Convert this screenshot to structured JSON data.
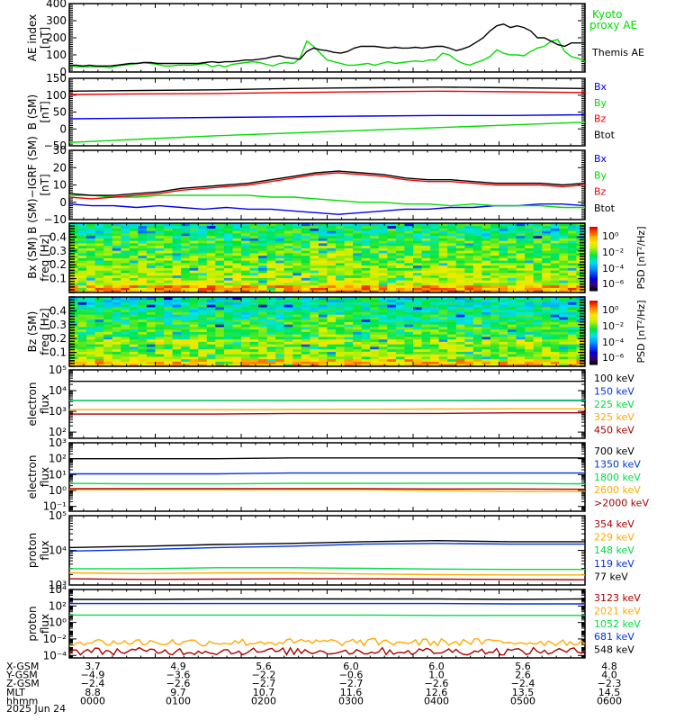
{
  "chart_data": [
    {
      "type": "line",
      "id": "ae",
      "ylabel": [
        "AE index",
        "[nT]"
      ],
      "ylim": [
        0,
        400
      ],
      "yticks": [
        "0",
        "100",
        "200",
        "300",
        "400"
      ],
      "yticks_values": [
        0,
        100,
        200,
        300,
        400
      ],
      "scale": "linear",
      "series": [
        {
          "name": "Kyoto proxy AE",
          "legend": [
            "Kyoto",
            "proxy AE"
          ],
          "color": "#00dd00",
          "values": [
            40,
            30,
            30,
            30,
            30,
            30,
            25,
            35,
            40,
            45,
            50,
            55,
            50,
            45,
            35,
            35,
            40,
            40,
            40,
            45,
            50,
            30,
            40,
            30,
            45,
            50,
            55,
            60,
            55,
            45,
            35,
            50,
            55,
            50,
            80,
            180,
            150,
            110,
            70,
            60,
            50,
            40,
            40,
            45,
            50,
            40,
            50,
            60,
            50,
            55,
            60,
            65,
            60,
            70,
            70,
            110,
            100,
            70,
            50,
            40,
            55,
            70,
            90,
            130,
            110,
            100,
            100,
            95,
            120,
            140,
            150,
            180,
            190,
            120,
            90,
            80,
            60
          ]
        },
        {
          "name": "Themis AE",
          "legend": [
            "Themis AE"
          ],
          "color": "#000000",
          "values": [
            40,
            40,
            35,
            40,
            35,
            35,
            35,
            40,
            45,
            50,
            50,
            55,
            55,
            50,
            50,
            50,
            50,
            50,
            50,
            50,
            55,
            60,
            55,
            60,
            60,
            65,
            70,
            70,
            75,
            80,
            90,
            95,
            85,
            80,
            75,
            120,
            140,
            130,
            125,
            115,
            110,
            120,
            140,
            150,
            150,
            150,
            145,
            140,
            145,
            140,
            140,
            145,
            140,
            145,
            150,
            150,
            140,
            125,
            135,
            150,
            175,
            200,
            240,
            270,
            280,
            260,
            270,
            260,
            240,
            200,
            200,
            180,
            160,
            150,
            170,
            170,
            170
          ]
        }
      ]
    },
    {
      "type": "line",
      "id": "bsm",
      "ylabel": [
        "B (SM)",
        "[nT]"
      ],
      "ylim": [
        -50,
        150
      ],
      "yticks": [
        "−50",
        "0",
        "50",
        "100",
        "150"
      ],
      "yticks_values": [
        -50,
        0,
        50,
        100,
        150
      ],
      "scale": "linear",
      "series": [
        {
          "name": "Bx",
          "color": "#0000ee",
          "values": [
            30,
            32,
            34,
            36,
            38,
            40,
            40,
            42
          ]
        },
        {
          "name": "By",
          "color": "#00dd00",
          "values": [
            -40,
            -30,
            -20,
            -12,
            -4,
            4,
            12,
            20
          ]
        },
        {
          "name": "Bz",
          "color": "#ee0000",
          "values": [
            102,
            104,
            105,
            108,
            110,
            112,
            110,
            108
          ]
        },
        {
          "name": "Btot",
          "color": "#000000",
          "values": [
            112,
            114,
            116,
            120,
            122,
            124,
            122,
            120
          ]
        }
      ]
    },
    {
      "type": "line",
      "id": "bigrf",
      "ylabel": [
        "B (SM)−IGRF (SM)",
        "[nT]"
      ],
      "ylim": [
        -10,
        30
      ],
      "yticks": [
        "−10",
        "0",
        "10",
        "20",
        "30"
      ],
      "yticks_values": [
        -10,
        0,
        10,
        20,
        30
      ],
      "scale": "linear",
      "series": [
        {
          "name": "Bx",
          "color": "#0000ee",
          "values": [
            -1,
            -2,
            -2,
            -3,
            -2,
            -3,
            -4,
            -3,
            -4,
            -4,
            -5,
            -6,
            -7,
            -6,
            -5,
            -4,
            -4,
            -3,
            -3,
            -2,
            -2,
            -1,
            -1,
            -2
          ]
        },
        {
          "name": "By",
          "color": "#00dd00",
          "values": [
            4,
            4,
            3,
            3,
            4,
            4,
            4,
            4,
            4,
            3,
            3,
            2,
            1,
            0,
            0,
            -1,
            -1,
            -2,
            -1,
            -2,
            -2,
            -2,
            -3,
            -3
          ]
        },
        {
          "name": "Bz",
          "color": "#ee0000",
          "values": [
            3,
            2,
            3,
            4,
            5,
            7,
            8,
            9,
            10,
            12,
            14,
            16,
            17,
            16,
            15,
            13,
            12,
            12,
            11,
            10,
            10,
            10,
            9,
            10
          ]
        },
        {
          "name": "Btot",
          "color": "#000000",
          "values": [
            5,
            4,
            4,
            5,
            6,
            8,
            9,
            10,
            11,
            13,
            15,
            17,
            18,
            17,
            16,
            14,
            13,
            13,
            12,
            11,
            11,
            11,
            10,
            11
          ]
        }
      ]
    },
    {
      "type": "heatmap",
      "id": "bx-spec",
      "ylabel": [
        "Bx (SM)",
        "freq [Hz]"
      ],
      "ylim": [
        0,
        0.5
      ],
      "yticks": [
        "0.1",
        "0.2",
        "0.3",
        "0.4"
      ],
      "yticks_values": [
        0.1,
        0.2,
        0.3,
        0.4
      ],
      "colorbar": {
        "label": "PSD [nT²/Hz]",
        "ticks": [
          "10⁰",
          "10⁻²",
          "10⁻⁴",
          "10⁻⁶"
        ],
        "log_range": [
          -7,
          1
        ]
      }
    },
    {
      "type": "heatmap",
      "id": "bz-spec",
      "ylabel": [
        "Bz (SM)",
        "freq [Hz]"
      ],
      "ylim": [
        0,
        0.5
      ],
      "yticks": [
        "0.1",
        "0.2",
        "0.3",
        "0.4"
      ],
      "yticks_values": [
        0.1,
        0.2,
        0.3,
        0.4
      ],
      "colorbar": {
        "label": "PSD [nT²/Hz]",
        "ticks": [
          "10⁰",
          "10⁻²",
          "10⁻⁴",
          "10⁻⁶"
        ],
        "log_range": [
          -7,
          1
        ]
      }
    },
    {
      "type": "line",
      "id": "eflux-low",
      "ylabel": [
        "electron",
        "flux"
      ],
      "scale": "log",
      "ylim_exp": [
        1.7,
        5
      ],
      "yticks": [
        "10²",
        "10³",
        "10⁴",
        "10⁵"
      ],
      "yticks_values": [
        2,
        3,
        4,
        5
      ],
      "series": [
        {
          "name": "100 keV",
          "color": "#000000",
          "values": [
            4.45,
            4.45,
            4.45,
            4.45,
            4.45,
            4.45,
            4.45,
            4.45
          ]
        },
        {
          "name": "150 keV",
          "color": "#0033dd",
          "values": [
            3.52,
            3.52,
            3.52,
            3.52,
            3.52,
            3.52,
            3.52,
            3.52
          ]
        },
        {
          "name": "225 keV",
          "color": "#00dd44",
          "values": [
            3.52,
            3.52,
            3.52,
            3.52,
            3.53,
            3.53,
            3.54,
            3.54
          ]
        },
        {
          "name": "325 keV",
          "color": "#ffaa00",
          "values": [
            3.08,
            3.08,
            3.08,
            3.09,
            3.1,
            3.11,
            3.12,
            3.12
          ]
        },
        {
          "name": "450 keV",
          "color": "#aa0000",
          "values": [
            2.87,
            2.87,
            2.87,
            2.9,
            2.9,
            2.9,
            2.93,
            2.93
          ]
        }
      ]
    },
    {
      "type": "line",
      "id": "eflux-high",
      "ylabel": [
        "electron",
        "flux"
      ],
      "scale": "log",
      "ylim_exp": [
        -1.3,
        3
      ],
      "yticks": [
        "10⁻¹",
        "10⁰",
        "10¹",
        "10²",
        "10³"
      ],
      "yticks_values": [
        -1,
        0,
        1,
        2,
        3
      ],
      "series": [
        {
          "name": "700 keV",
          "color": "#000000",
          "values": [
            2.0,
            2.0,
            2.0,
            2.05,
            2.05,
            2.05,
            2.05,
            2.05
          ]
        },
        {
          "name": "1350 keV",
          "color": "#0033dd",
          "values": [
            1.05,
            1.05,
            1.05,
            1.1,
            1.1,
            1.1,
            1.1,
            1.1
          ]
        },
        {
          "name": "1800 keV",
          "color": "#00dd44",
          "values": [
            0.45,
            0.42,
            0.42,
            0.45,
            0.45,
            0.45,
            0.45,
            0.42
          ]
        },
        {
          "name": "2600 keV",
          "color": "#ffaa00",
          "values": [
            0.05,
            0.05,
            0.05,
            0.05,
            0.05,
            0.0,
            -0.05,
            -0.05
          ]
        },
        {
          "name": ">2000 keV",
          "color": "#aa0000",
          "values": [
            0.12,
            0.12,
            0.12,
            0.12,
            0.12,
            0.1,
            0.1,
            0.08
          ]
        }
      ]
    },
    {
      "type": "line",
      "id": "pflux-low",
      "ylabel": [
        "proton",
        "flux"
      ],
      "scale": "log",
      "ylim_exp": [
        3,
        5
      ],
      "yticks": [
        "10³",
        "10⁴",
        "10⁵"
      ],
      "yticks_values": [
        3,
        4,
        5
      ],
      "series": [
        {
          "name": "354 keV",
          "color": "#aa0000",
          "values": [
            3.18,
            3.16,
            3.17,
            3.18,
            3.18,
            3.17,
            3.16,
            3.15
          ]
        },
        {
          "name": "229 keV",
          "color": "#ffaa00",
          "values": [
            3.35,
            3.33,
            3.35,
            3.35,
            3.32,
            3.3,
            3.29,
            3.29
          ]
        },
        {
          "name": "148 keV",
          "color": "#00dd44",
          "values": [
            3.47,
            3.47,
            3.5,
            3.5,
            3.48,
            3.46,
            3.45,
            3.45
          ]
        },
        {
          "name": "119 keV",
          "color": "#0033dd",
          "values": [
            3.98,
            4.02,
            4.08,
            4.12,
            4.18,
            4.2,
            4.18,
            4.18
          ]
        },
        {
          "name": "77 keV",
          "color": "#000000",
          "values": [
            4.08,
            4.12,
            4.17,
            4.2,
            4.25,
            4.28,
            4.25,
            4.25
          ]
        }
      ]
    },
    {
      "type": "line",
      "id": "pflux-high",
      "ylabel": [
        "proton",
        "flux"
      ],
      "scale": "log",
      "ylim_exp": [
        -4.3,
        4
      ],
      "yticks": [
        "10⁻⁴",
        "10⁻²",
        "10⁰",
        "10²",
        "10⁴"
      ],
      "yticks_values": [
        -4,
        -2,
        0,
        2,
        4
      ],
      "series": [
        {
          "name": "3123 keV",
          "color": "#aa0000",
          "values": [
            -3.5,
            -3.5,
            -3.5,
            -3.5,
            -3.5,
            -3.5,
            -3.5,
            -3.5
          ],
          "noisy": true
        },
        {
          "name": "2021 keV",
          "color": "#ffaa00",
          "values": [
            -2.4,
            -2.4,
            -2.4,
            -2.4,
            -2.4,
            -2.4,
            -2.4,
            -2.4
          ],
          "noisy": true
        },
        {
          "name": "1052 keV",
          "color": "#00dd44",
          "values": [
            0.9,
            0.9,
            0.9,
            0.9,
            0.9,
            0.85,
            0.85,
            0.85
          ]
        },
        {
          "name": "681 keV",
          "color": "#0033dd",
          "values": [
            2.3,
            2.3,
            2.3,
            2.3,
            2.3,
            2.3,
            2.25,
            2.25
          ]
        },
        {
          "name": "548 keV",
          "color": "#000000",
          "values": [
            2.8,
            2.8,
            2.85,
            2.85,
            2.85,
            2.85,
            2.8,
            2.85
          ]
        }
      ]
    }
  ],
  "ephemeris": {
    "rows": [
      {
        "label": "X-GSM",
        "values": [
          "3.7",
          "4.9",
          "5.6",
          "6.0",
          "6.0",
          "5.6",
          "4.8"
        ]
      },
      {
        "label": "Y-GSM",
        "values": [
          "−4.9",
          "−3.6",
          "−2.2",
          "−0.6",
          "1.0",
          "2.6",
          "4.0"
        ]
      },
      {
        "label": "Z-GSM",
        "values": [
          "−2.4",
          "−2.6",
          "−2.7",
          "−2.7",
          "−2.6",
          "−2.4",
          "−2.3"
        ]
      },
      {
        "label": "MLT",
        "values": [
          "8.8",
          "9.7",
          "10.7",
          "11.6",
          "12.6",
          "13.5",
          "14.5"
        ]
      },
      {
        "label": "hhmm",
        "values": [
          "0000",
          "0100",
          "0200",
          "0300",
          "0400",
          "0500",
          "0600"
        ]
      }
    ],
    "date": "2025 Jun 24"
  }
}
